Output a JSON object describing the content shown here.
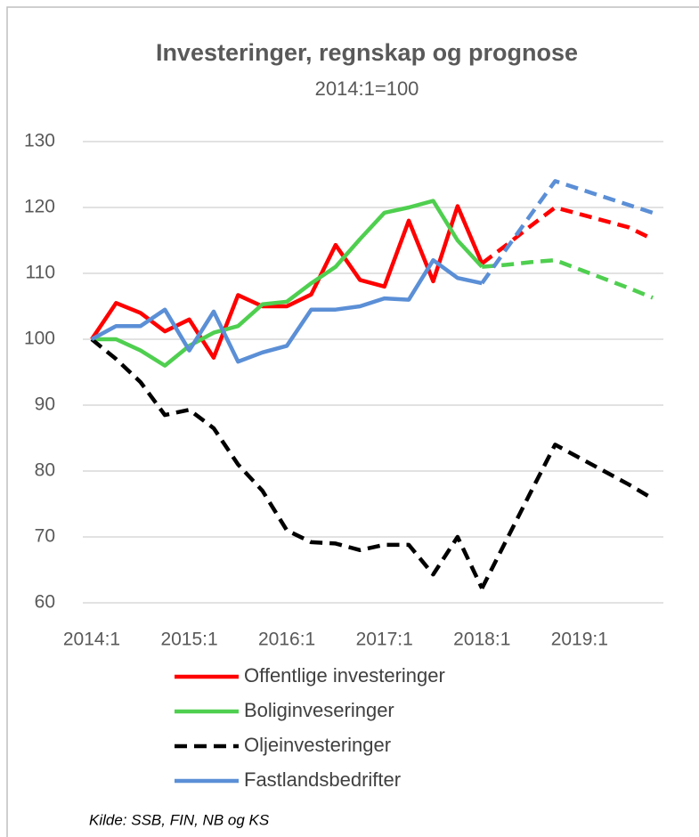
{
  "chart_data": {
    "type": "line",
    "title": "Investeringer, regnskap og prognose",
    "subtitle": "2014:1=100",
    "source": "Kilde: SSB, FIN, NB og KS",
    "categories": [
      "2014:1",
      null,
      null,
      null,
      "2015:1",
      null,
      null,
      null,
      "2016:1",
      null,
      null,
      null,
      "2017:1",
      null,
      null,
      null,
      "2018:1",
      null,
      null,
      null,
      "2019:1",
      null,
      null,
      null
    ],
    "series": [
      {
        "name": "Offentlige investeringer",
        "color": "#ff0000",
        "dashed": false,
        "values": [
          100,
          105.5,
          104,
          101.2,
          103,
          97.2,
          106.7,
          105,
          105,
          106.8,
          114.3,
          109,
          108,
          118,
          108.8,
          120.2,
          111.5,
          null,
          null,
          null,
          null,
          null,
          null,
          null
        ],
        "forecast": [
          null,
          null,
          null,
          null,
          null,
          null,
          null,
          null,
          null,
          null,
          null,
          null,
          null,
          null,
          null,
          null,
          111.5,
          114.3,
          117.2,
          120,
          119,
          118,
          117,
          115.2
        ]
      },
      {
        "name": "Boliginveseringer",
        "color": "#4fcf4f",
        "dashed": false,
        "values": [
          100,
          100,
          98.3,
          96,
          99,
          101,
          102,
          105.3,
          105.7,
          108.5,
          111,
          115.2,
          119.2,
          120,
          121,
          115,
          111,
          null,
          null,
          null,
          null,
          null,
          null,
          null
        ],
        "forecast": [
          null,
          null,
          null,
          null,
          null,
          null,
          null,
          null,
          null,
          null,
          null,
          null,
          null,
          null,
          null,
          null,
          111,
          111.3,
          111.7,
          112,
          110.6,
          109.2,
          107.8,
          106.3
        ]
      },
      {
        "name": "Oljeinvesteringer",
        "color": "#000000",
        "dashed": true,
        "values": [
          100,
          97,
          93.5,
          88.5,
          89.3,
          86.5,
          81,
          77,
          71,
          69.2,
          69,
          68,
          68.8,
          68.8,
          64.3,
          70,
          62.2,
          null,
          null,
          null,
          null,
          null,
          null,
          null
        ],
        "forecast": [
          null,
          null,
          null,
          null,
          null,
          null,
          null,
          null,
          null,
          null,
          null,
          null,
          null,
          null,
          null,
          null,
          62.2,
          69.5,
          76.8,
          84,
          82,
          80,
          78,
          75.8
        ]
      },
      {
        "name": "Fastlandsbedrifter",
        "color": "#5b8fd6",
        "dashed": false,
        "values": [
          100,
          102,
          102,
          104.5,
          98.3,
          104.2,
          96.6,
          98,
          99,
          104.5,
          104.5,
          105,
          106.2,
          106,
          112,
          109.3,
          108.5,
          null,
          null,
          null,
          null,
          null,
          null,
          null
        ],
        "forecast": [
          null,
          null,
          null,
          null,
          null,
          null,
          null,
          null,
          null,
          null,
          null,
          null,
          null,
          null,
          null,
          null,
          108.5,
          113.7,
          118.9,
          124,
          122.8,
          121.6,
          120.4,
          119.2
        ]
      }
    ],
    "ylim": [
      60,
      130
    ],
    "yticks": [
      60,
      70,
      80,
      90,
      100,
      110,
      120,
      130
    ],
    "grid": true
  }
}
